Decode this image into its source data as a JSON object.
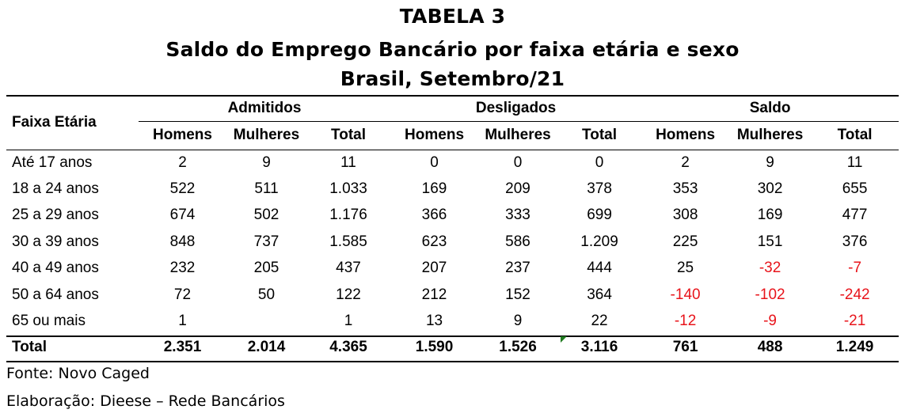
{
  "title": {
    "line1": "TABELA 3",
    "line2": "Saldo do Emprego Bancário por faixa etária e sexo",
    "line3": "Brasil, Setembro/21"
  },
  "header": {
    "row_label": "Faixa Etária",
    "groups": [
      "Admitidos",
      "Desligados",
      "Saldo"
    ],
    "subcolumns": [
      "Homens",
      "Mulheres",
      "Total",
      "Homens",
      "Mulheres",
      "Total",
      "Homens",
      "Mulheres",
      "Total"
    ]
  },
  "rows": [
    {
      "label": "Até 17 anos",
      "values": [
        "2",
        "9",
        "11",
        "0",
        "0",
        "0",
        "2",
        "9",
        "11"
      ]
    },
    {
      "label": "18 a 24 anos",
      "values": [
        "522",
        "511",
        "1.033",
        "169",
        "209",
        "378",
        "353",
        "302",
        "655"
      ]
    },
    {
      "label": "25 a 29 anos",
      "values": [
        "674",
        "502",
        "1.176",
        "366",
        "333",
        "699",
        "308",
        "169",
        "477"
      ]
    },
    {
      "label": "30 a 39 anos",
      "values": [
        "848",
        "737",
        "1.585",
        "623",
        "586",
        "1.209",
        "225",
        "151",
        "376"
      ]
    },
    {
      "label": "40 a 49 anos",
      "values": [
        "232",
        "205",
        "437",
        "207",
        "237",
        "444",
        "25",
        "-32",
        "-7"
      ]
    },
    {
      "label": "50 a 64 anos",
      "values": [
        "72",
        "50",
        "122",
        "212",
        "152",
        "364",
        "-140",
        "-102",
        "-242"
      ]
    },
    {
      "label": "65 ou mais",
      "values": [
        "1",
        "",
        "1",
        "13",
        "9",
        "22",
        "-12",
        "-9",
        "-21"
      ]
    }
  ],
  "total_row": {
    "label": "Total",
    "values": [
      "2.351",
      "2.014",
      "4.365",
      "1.590",
      "1.526",
      "3.116",
      "761",
      "488",
      "1.249"
    ]
  },
  "footer": {
    "source": "Fonte: Novo Caged",
    "author": "Elaboração: Dieese – Rede Bancários"
  },
  "colors": {
    "negative": "#e8141b"
  }
}
